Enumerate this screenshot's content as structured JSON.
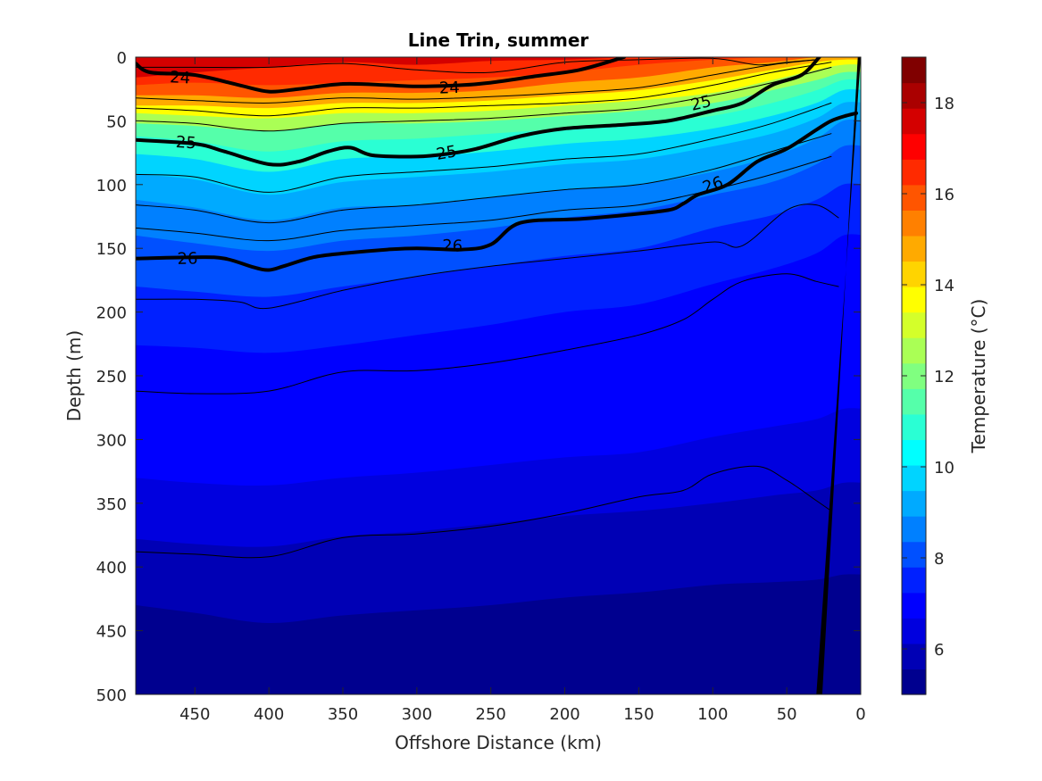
{
  "chart_data": {
    "type": "contour",
    "title": "Line Trin, summer",
    "xlabel": "Offshore Distance (km)",
    "ylabel": "Depth (m)",
    "colorbar_label": "Temperature (°C)",
    "x_reversed": true,
    "y_reversed": true,
    "xlim": [
      490,
      0
    ],
    "ylim": [
      0,
      500
    ],
    "x_ticks": [
      450,
      400,
      350,
      300,
      250,
      200,
      150,
      100,
      50,
      0
    ],
    "y_ticks": [
      0,
      50,
      100,
      150,
      200,
      250,
      300,
      350,
      400,
      450,
      500
    ],
    "colorbar_range": [
      5,
      19
    ],
    "colorbar_ticks": [
      6,
      8,
      10,
      12,
      14,
      16,
      18
    ],
    "colormap": [
      "#00008f",
      "#0000b5",
      "#0000df",
      "#0000ff",
      "#0020ff",
      "#0050ff",
      "#0080ff",
      "#00aaff",
      "#00d4ff",
      "#00ffff",
      "#2affd4",
      "#55ffaa",
      "#80ff80",
      "#aaff55",
      "#d4ff2a",
      "#ffff00",
      "#ffd400",
      "#ffaa00",
      "#ff8000",
      "#ff5500",
      "#ff2a00",
      "#ff0000",
      "#d40000",
      "#aa0000",
      "#800000"
    ],
    "temperature_isotherms": [
      {
        "x": [
          490,
          450,
          400,
          350,
          300,
          250,
          200,
          150,
          100,
          60,
          30,
          12
        ],
        "depth": [
          16,
          12,
          8,
          4,
          6,
          3,
          2,
          0,
          0,
          0,
          0,
          0
        ],
        "temp": 17
      },
      {
        "x": [
          490,
          450,
          400,
          350,
          300,
          250,
          200,
          150,
          100,
          60,
          30,
          12
        ],
        "depth": [
          22,
          20,
          22,
          20,
          18,
          16,
          12,
          6,
          2,
          0,
          0,
          0
        ],
        "temp": 16
      },
      {
        "x": [
          490,
          450,
          400,
          350,
          300,
          250,
          200,
          150,
          100,
          60,
          30,
          12
        ],
        "depth": [
          30,
          30,
          32,
          28,
          28,
          26,
          20,
          16,
          8,
          4,
          0,
          0
        ],
        "temp": 15
      },
      {
        "x": [
          490,
          450,
          400,
          350,
          300,
          250,
          200,
          150,
          100,
          60,
          30,
          12
        ],
        "depth": [
          38,
          38,
          40,
          36,
          36,
          34,
          30,
          26,
          18,
          10,
          4,
          2
        ],
        "temp": 14
      },
      {
        "x": [
          490,
          450,
          400,
          350,
          300,
          250,
          200,
          150,
          100,
          60,
          30,
          12
        ],
        "depth": [
          44,
          46,
          48,
          44,
          44,
          42,
          38,
          34,
          28,
          18,
          10,
          6
        ],
        "temp": 13
      },
      {
        "x": [
          490,
          450,
          400,
          350,
          300,
          250,
          200,
          150,
          100,
          60,
          30,
          12
        ],
        "depth": [
          52,
          54,
          58,
          52,
          52,
          50,
          46,
          42,
          36,
          26,
          18,
          12
        ],
        "temp": 12
      },
      {
        "x": [
          490,
          450,
          400,
          350,
          300,
          250,
          200,
          150,
          100,
          60,
          30,
          12
        ],
        "depth": [
          62,
          66,
          74,
          66,
          64,
          60,
          56,
          52,
          46,
          36,
          26,
          18
        ],
        "temp": 11
      },
      {
        "x": [
          490,
          450,
          400,
          350,
          300,
          250,
          200,
          150,
          100,
          60,
          30,
          12
        ],
        "depth": [
          76,
          80,
          90,
          80,
          78,
          74,
          68,
          64,
          56,
          46,
          36,
          26
        ],
        "temp": 10
      },
      {
        "x": [
          490,
          450,
          400,
          350,
          300,
          250,
          200,
          150,
          100,
          60,
          30,
          12
        ],
        "depth": [
          92,
          96,
          108,
          98,
          94,
          90,
          84,
          80,
          70,
          60,
          48,
          36
        ],
        "temp": 9.5
      },
      {
        "x": [
          490,
          450,
          400,
          350,
          300,
          250,
          200,
          150,
          100,
          60,
          30,
          12
        ],
        "depth": [
          112,
          118,
          128,
          118,
          116,
          110,
          104,
          100,
          90,
          78,
          64,
          50
        ],
        "temp": 9
      },
      {
        "x": [
          490,
          450,
          400,
          350,
          300,
          250,
          200,
          150,
          100,
          60,
          30,
          12
        ],
        "depth": [
          140,
          146,
          152,
          144,
          140,
          134,
          126,
          120,
          108,
          98,
          84,
          70
        ],
        "temp": 8.5
      },
      {
        "x": [
          490,
          450,
          400,
          350,
          300,
          250,
          200,
          150,
          100,
          60,
          30,
          12
        ],
        "depth": [
          180,
          184,
          188,
          180,
          172,
          164,
          156,
          150,
          134,
          124,
          112,
          100
        ],
        "temp": 8
      },
      {
        "x": [
          490,
          450,
          400,
          350,
          300,
          250,
          200,
          150,
          100,
          60,
          30,
          12
        ],
        "depth": [
          226,
          228,
          232,
          226,
          218,
          210,
          200,
          194,
          178,
          166,
          154,
          140
        ],
        "temp": 7.5
      },
      {
        "x": [
          490,
          450,
          400,
          350,
          300,
          250,
          200,
          150,
          100,
          60,
          30,
          12
        ],
        "depth": [
          276,
          280,
          282,
          276,
          270,
          262,
          252,
          246,
          232,
          222,
          212,
          200
        ],
        "temp": 7
      },
      {
        "x": [
          490,
          450,
          400,
          350,
          300,
          250,
          200,
          150,
          100,
          60,
          30,
          12
        ],
        "depth": [
          330,
          334,
          336,
          330,
          326,
          320,
          314,
          310,
          298,
          290,
          284,
          276
        ],
        "temp": 6.5
      },
      {
        "x": [
          490,
          450,
          400,
          350,
          300,
          250,
          200,
          150,
          100,
          60,
          30,
          12
        ],
        "depth": [
          378,
          382,
          384,
          376,
          372,
          366,
          360,
          356,
          350,
          344,
          340,
          334
        ],
        "temp": 6
      },
      {
        "x": [
          490,
          450,
          400,
          350,
          300,
          250,
          200,
          150,
          100,
          60,
          30,
          12
        ],
        "depth": [
          430,
          436,
          444,
          438,
          434,
          430,
          424,
          420,
          414,
          412,
          410,
          406
        ],
        "temp": 5.5
      }
    ],
    "density_contours": [
      {
        "label": "24",
        "bold": true,
        "x": [
          490,
          480,
          450,
          420,
          400,
          380,
          350,
          320,
          300,
          270,
          250,
          220,
          190,
          160
        ],
        "depth": [
          5,
          12,
          14,
          22,
          27,
          25,
          21,
          22,
          23,
          22,
          20,
          15,
          10,
          0
        ],
        "labels_at": [
          [
            460,
            16
          ],
          [
            278,
            24
          ]
        ]
      },
      {
        "label": "25",
        "bold": true,
        "x": [
          490,
          450,
          430,
          400,
          380,
          360,
          345,
          330,
          300,
          280,
          260,
          230,
          200,
          160,
          130,
          100,
          80,
          60,
          40,
          28
        ],
        "depth": [
          65,
          68,
          74,
          84,
          82,
          74,
          71,
          77,
          78,
          76,
          72,
          62,
          56,
          53,
          50,
          42,
          36,
          22,
          14,
          0
        ],
        "labels_at": [
          [
            456,
            67
          ],
          [
            280,
            75
          ],
          [
            108,
            36
          ]
        ]
      },
      {
        "label": "26",
        "bold": true,
        "x": [
          490,
          450,
          430,
          410,
          400,
          390,
          370,
          350,
          320,
          300,
          270,
          250,
          230,
          190,
          160,
          130,
          120,
          110,
          90,
          70,
          50,
          30,
          20,
          10,
          3
        ],
        "depth": [
          158,
          157,
          158,
          165,
          167,
          164,
          157,
          154,
          151,
          150,
          151,
          147,
          130,
          127,
          124,
          120,
          115,
          108,
          100,
          82,
          72,
          57,
          50,
          46,
          44
        ],
        "labels_at": [
          [
            455,
            158
          ],
          [
            276,
            148
          ],
          [
            100,
            100
          ]
        ]
      },
      {
        "label": "",
        "bold": false,
        "x": [
          490,
          450,
          400,
          350,
          300,
          250,
          200,
          150,
          100,
          70,
          50,
          30
        ],
        "depth": [
          8,
          8,
          8,
          5,
          10,
          12,
          4,
          2,
          1,
          6,
          4,
          2
        ]
      },
      {
        "label": "",
        "bold": false,
        "x": [
          490,
          450,
          400,
          350,
          300,
          250,
          200,
          150,
          100,
          60,
          30
        ],
        "depth": [
          32,
          34,
          36,
          32,
          33,
          31,
          28,
          24,
          14,
          6,
          2
        ]
      },
      {
        "label": "",
        "bold": false,
        "x": [
          490,
          450,
          400,
          350,
          300,
          250,
          200,
          150,
          100,
          60,
          20
        ],
        "depth": [
          40,
          42,
          46,
          40,
          40,
          38,
          36,
          32,
          22,
          12,
          4
        ]
      },
      {
        "label": "",
        "bold": false,
        "x": [
          490,
          450,
          400,
          350,
          300,
          250,
          200,
          150,
          100,
          60,
          20
        ],
        "depth": [
          50,
          52,
          58,
          52,
          50,
          48,
          44,
          40,
          30,
          20,
          8
        ]
      },
      {
        "label": "",
        "bold": false,
        "x": [
          490,
          450,
          400,
          350,
          300,
          250,
          200,
          150,
          100,
          60,
          20
        ],
        "depth": [
          92,
          94,
          106,
          94,
          90,
          86,
          80,
          76,
          64,
          52,
          36
        ]
      },
      {
        "label": "",
        "bold": false,
        "x": [
          490,
          450,
          400,
          350,
          300,
          250,
          200,
          150,
          100,
          60,
          20
        ],
        "depth": [
          116,
          120,
          130,
          120,
          116,
          110,
          104,
          100,
          88,
          74,
          60
        ]
      },
      {
        "label": "",
        "bold": false,
        "x": [
          490,
          450,
          400,
          350,
          300,
          250,
          200,
          150,
          100,
          60,
          20
        ],
        "depth": [
          134,
          138,
          144,
          136,
          132,
          128,
          120,
          116,
          104,
          92,
          78
        ]
      },
      {
        "label": "",
        "bold": false,
        "x": [
          490,
          450,
          420,
          400,
          350,
          300,
          250,
          200,
          150,
          100,
          80,
          50,
          30,
          15
        ],
        "depth": [
          190,
          190,
          192,
          197,
          183,
          172,
          164,
          158,
          152,
          145,
          148,
          120,
          116,
          126
        ]
      },
      {
        "label": "",
        "bold": false,
        "x": [
          490,
          450,
          400,
          350,
          300,
          250,
          200,
          150,
          120,
          100,
          80,
          50,
          30,
          15
        ],
        "depth": [
          262,
          264,
          262,
          247,
          246,
          240,
          230,
          218,
          206,
          190,
          176,
          170,
          176,
          180
        ]
      },
      {
        "label": "",
        "bold": false,
        "x": [
          490,
          450,
          400,
          350,
          300,
          250,
          200,
          150,
          120,
          100,
          70,
          50,
          30,
          20
        ],
        "depth": [
          388,
          390,
          392,
          377,
          374,
          368,
          358,
          345,
          340,
          327,
          321,
          332,
          348,
          356
        ]
      }
    ],
    "seafloor": {
      "color": "#000000",
      "x": [
        0,
        2,
        26,
        30
      ],
      "depth": [
        0,
        0,
        500,
        500
      ]
    }
  }
}
